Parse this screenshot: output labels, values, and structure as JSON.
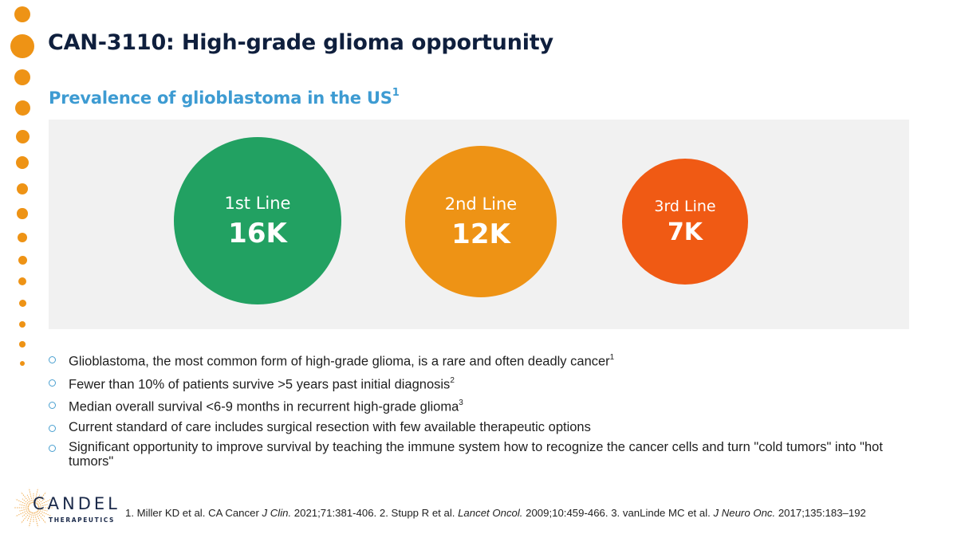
{
  "header": {
    "title": "CAN-3110: High-grade glioma opportunity",
    "subtitle": "Prevalence of glioblastoma in the US",
    "subtitle_sup": "1"
  },
  "colors": {
    "accent_dots": "#ee9315",
    "title": "#0f1f3d",
    "subtitle": "#3d9bd2",
    "panel": "#f1f1f1",
    "bullet": "#4aa0d0"
  },
  "prevalence": [
    {
      "label": "1st Line",
      "value": "16K",
      "color": "#22a162"
    },
    {
      "label": "2nd Line",
      "value": "12K",
      "color": "#ee9315"
    },
    {
      "label": "3rd Line",
      "value": "7K",
      "color": "#f05a14"
    }
  ],
  "bullets": [
    {
      "text": "Glioblastoma, the most common form of high-grade glioma, is a rare and often deadly cancer",
      "sup": "1"
    },
    {
      "text": "Fewer than 10% of patients survive >5 years past initial diagnosis",
      "sup": "2"
    },
    {
      "text": "Median overall survival <6-9 months in recurrent high-grade glioma",
      "sup": "3"
    },
    {
      "text": "Current standard of care includes surgical resection with few available therapeutic options",
      "sup": ""
    },
    {
      "text": "Significant opportunity to improve survival by teaching the immune system how to recognize the cancer cells and turn \"cold tumors\" into \"hot tumors\"",
      "sup": ""
    }
  ],
  "logo": {
    "name": "CANDEL",
    "tagline": "THERAPEUTICS"
  },
  "references": {
    "r1_a": "1. Miller KD et al. CA Cancer ",
    "r1_journal": "J Clin.",
    "r1_b": " 2021;71:381-406. 2. Stupp R et al. ",
    "r2_journal": "Lancet Oncol.",
    "r2_b": " 2009;10:459-466. 3. vanLinde MC et al.  ",
    "r3_journal": "J Neuro Onc.",
    "r3_b": " 2017;135:183–192"
  }
}
